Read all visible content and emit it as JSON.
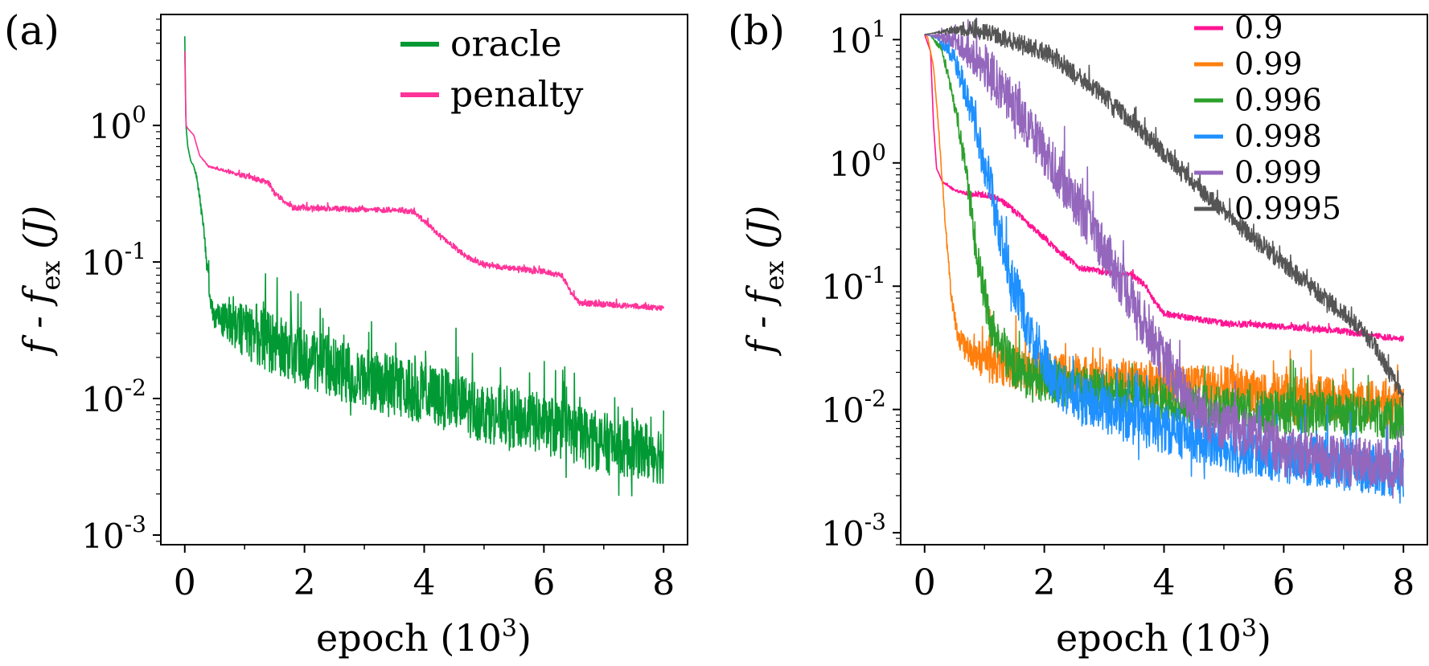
{
  "chart_data": [
    {
      "panel_label": "(a)",
      "type": "line",
      "xlabel": "epoch (10^3)",
      "ylabel": "f - f_ex (J)",
      "xlim": [
        -0.4,
        8.4
      ],
      "ylim": [
        0.00085,
        6.5
      ],
      "yscale": "log",
      "xticks": [
        0,
        2,
        4,
        6,
        8
      ],
      "yticks": [
        0.001,
        0.01,
        0.1,
        1
      ],
      "ytick_exponents": [
        "-3",
        "-2",
        "-1",
        "0"
      ],
      "legend_position": "top-right",
      "series": [
        {
          "name": "oracle",
          "color": "#009933",
          "noise": 0.45,
          "x": [
            0,
            0.02,
            0.05,
            0.1,
            0.15,
            0.2,
            0.3,
            0.4,
            0.45,
            0.5,
            1,
            2,
            3,
            4,
            5,
            6,
            7,
            8
          ],
          "y": [
            4.5,
            1.0,
            0.7,
            0.55,
            0.5,
            0.42,
            0.2,
            0.07,
            0.045,
            0.04,
            0.032,
            0.02,
            0.014,
            0.011,
            0.008,
            0.0065,
            0.0047,
            0.0039
          ]
        },
        {
          "name": "penalty",
          "color": "#ff3399",
          "noise": 0.04,
          "x": [
            0,
            0.02,
            0.05,
            0.15,
            0.25,
            0.4,
            0.8,
            1.4,
            1.5,
            1.8,
            2.5,
            3.5,
            3.8,
            4.0,
            4.3,
            4.5,
            4.7,
            5.0,
            6.0,
            6.3,
            6.45,
            6.6,
            7.0,
            8.0
          ],
          "y": [
            3.5,
            1.0,
            0.95,
            0.85,
            0.6,
            0.5,
            0.45,
            0.38,
            0.32,
            0.25,
            0.245,
            0.24,
            0.235,
            0.2,
            0.15,
            0.13,
            0.11,
            0.095,
            0.085,
            0.08,
            0.06,
            0.05,
            0.049,
            0.046
          ]
        }
      ]
    },
    {
      "panel_label": "(b)",
      "type": "line",
      "xlabel": "epoch (10^3)",
      "ylabel": "f - f_ex (J)",
      "xlim": [
        -0.4,
        8.4
      ],
      "ylim": [
        0.0008,
        16
      ],
      "yscale": "log",
      "xticks": [
        0,
        2,
        4,
        6,
        8
      ],
      "yticks": [
        0.001,
        0.01,
        0.1,
        1,
        10
      ],
      "ytick_exponents": [
        "-3",
        "-2",
        "-1",
        "0",
        "1"
      ],
      "legend_position": "top-right",
      "series": [
        {
          "name": "0.9",
          "color": "#ff1493",
          "noise": 0.05,
          "x": [
            0,
            0.1,
            0.15,
            0.2,
            0.3,
            0.5,
            0.8,
            1.0,
            1.2,
            1.4,
            1.8,
            2.2,
            2.6,
            3.0,
            3.3,
            3.5,
            3.7,
            3.8,
            4.0,
            5.0,
            6.0,
            7.0,
            8.0
          ],
          "y": [
            11,
            8,
            2.0,
            0.9,
            0.7,
            0.6,
            0.55,
            0.55,
            0.52,
            0.45,
            0.3,
            0.2,
            0.14,
            0.13,
            0.125,
            0.12,
            0.1,
            0.08,
            0.06,
            0.05,
            0.047,
            0.043,
            0.037
          ]
        },
        {
          "name": "0.99",
          "color": "#ff7f0e",
          "noise": 0.35,
          "x": [
            0,
            0.05,
            0.15,
            0.25,
            0.35,
            0.45,
            0.55,
            0.7,
            1.0,
            1.5,
            2.0,
            3.0,
            4.0,
            5.0,
            6.0,
            7.0,
            8.0
          ],
          "y": [
            11,
            10.5,
            6,
            1.5,
            0.3,
            0.08,
            0.04,
            0.03,
            0.025,
            0.022,
            0.02,
            0.018,
            0.016,
            0.015,
            0.013,
            0.012,
            0.011
          ]
        },
        {
          "name": "0.996",
          "color": "#2ca02c",
          "noise": 0.35,
          "x": [
            0,
            0.1,
            0.3,
            0.5,
            0.7,
            0.9,
            1.1,
            1.3,
            1.5,
            2.0,
            3.0,
            4.0,
            5.0,
            6.0,
            7.0,
            8.0
          ],
          "y": [
            11,
            10.8,
            8,
            3,
            0.8,
            0.15,
            0.05,
            0.03,
            0.022,
            0.017,
            0.014,
            0.012,
            0.01,
            0.0095,
            0.009,
            0.0085
          ]
        },
        {
          "name": "0.998",
          "color": "#1e90ff",
          "noise": 0.4,
          "x": [
            0,
            0.2,
            0.5,
            0.8,
            1.1,
            1.4,
            1.7,
            2.0,
            2.2,
            2.5,
            3.0,
            3.5,
            4.0,
            5.0,
            6.0,
            7.0,
            8.0
          ],
          "y": [
            11,
            10.5,
            7,
            2.5,
            0.6,
            0.15,
            0.05,
            0.025,
            0.017,
            0.013,
            0.01,
            0.008,
            0.007,
            0.005,
            0.004,
            0.0035,
            0.003
          ]
        },
        {
          "name": "0.999",
          "color": "#9467bd",
          "noise": 0.4,
          "x": [
            0,
            0.5,
            1.0,
            1.5,
            2.0,
            2.5,
            3.0,
            3.5,
            4.0,
            4.4,
            4.8,
            5.5,
            6.0,
            7.0,
            8.0
          ],
          "y": [
            11,
            10,
            6,
            3,
            1.2,
            0.5,
            0.2,
            0.07,
            0.025,
            0.012,
            0.008,
            0.006,
            0.0045,
            0.0038,
            0.0035
          ]
        },
        {
          "name": "0.9995",
          "color": "#555555",
          "noise": 0.15,
          "x": [
            0,
            0.5,
            1.0,
            2.0,
            3.0,
            4.0,
            5.0,
            6.0,
            7.0,
            7.5,
            8.0
          ],
          "y": [
            11,
            12,
            11.5,
            8,
            3.5,
            1.2,
            0.4,
            0.15,
            0.06,
            0.035,
            0.012
          ]
        }
      ]
    }
  ]
}
